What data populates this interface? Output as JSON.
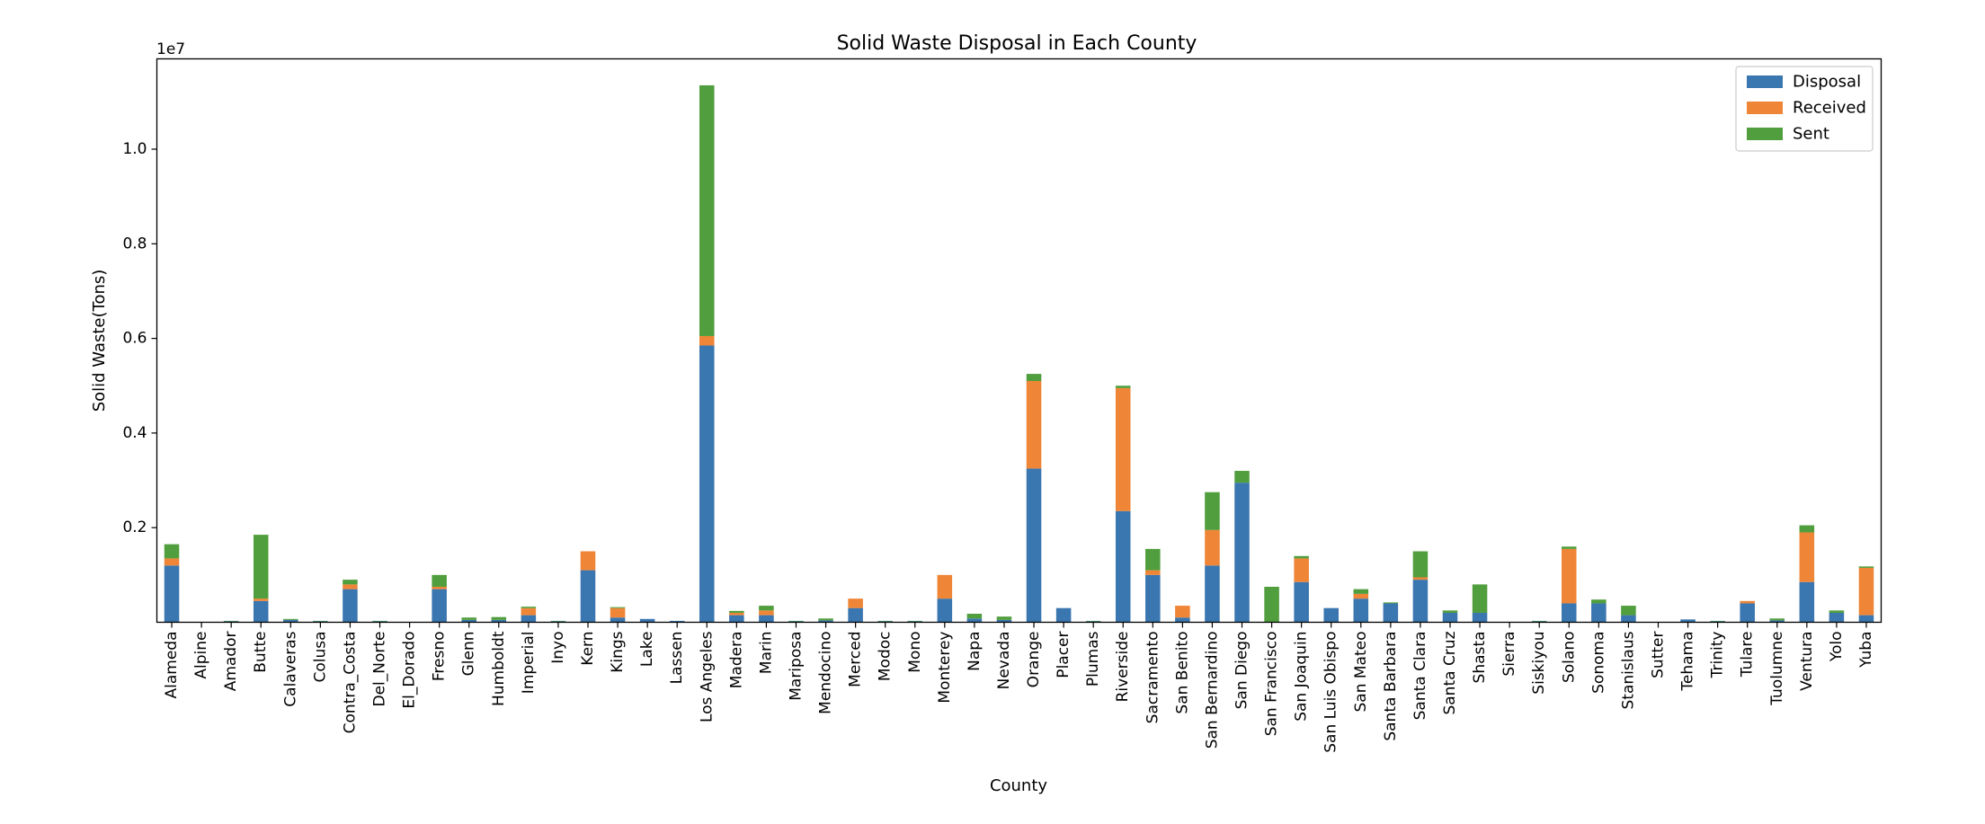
{
  "chart_data": {
    "type": "bar",
    "stacked": true,
    "title": "Solid Waste Disposal in Each County",
    "xlabel": "County",
    "ylabel": "Solid Waste(Tons)",
    "offset_label": "1e7",
    "ylim": [
      0,
      11500000
    ],
    "yticks": [
      2000000,
      4000000,
      6000000,
      8000000,
      10000000
    ],
    "ytick_labels": [
      "0.2",
      "0.4",
      "0.6",
      "0.8",
      "1.0"
    ],
    "grid": false,
    "legend_position": "top-right",
    "categories": [
      "Alameda",
      "Alpine",
      "Amador",
      "Butte",
      "Calaveras",
      "Colusa",
      "Contra_Costa",
      "Del_Norte",
      "El_Dorado",
      "Fresno",
      "Glenn",
      "Humboldt",
      "Imperial",
      "Inyo",
      "Kern",
      "Kings",
      "Lake",
      "Lassen",
      "Los Angeles",
      "Madera",
      "Marin",
      "Mariposa",
      "Mendocino",
      "Merced",
      "Modoc",
      "Mono",
      "Monterey",
      "Napa",
      "Nevada",
      "Orange",
      "Placer",
      "Plumas",
      "Riverside",
      "Sacramento",
      "San Benito",
      "San Bernardino",
      "San Diego",
      "San Francisco",
      "San Joaquin",
      "San Luis Obispo",
      "San Mateo",
      "Santa Barbara",
      "Santa Clara",
      "Santa Cruz",
      "Shasta",
      "Sierra",
      "Siskiyou",
      "Solano",
      "Sonoma",
      "Stanislaus",
      "Sutter",
      "Tehama",
      "Trinity",
      "Tulare",
      "Tuolumne",
      "Ventura",
      "Yolo",
      "Yuba"
    ],
    "series": [
      {
        "name": "Disposal",
        "color": "#3a76af",
        "values": [
          1200000,
          0,
          20000,
          450000,
          50000,
          20000,
          700000,
          20000,
          0,
          700000,
          50000,
          50000,
          150000,
          20000,
          1100000,
          100000,
          70000,
          30000,
          5850000,
          150000,
          150000,
          20000,
          40000,
          300000,
          20000,
          20000,
          500000,
          80000,
          50000,
          3250000,
          300000,
          20000,
          2350000,
          1000000,
          100000,
          1200000,
          2950000,
          0,
          850000,
          300000,
          500000,
          400000,
          900000,
          200000,
          200000,
          0,
          20000,
          400000,
          400000,
          150000,
          0,
          60000,
          20000,
          400000,
          40000,
          850000,
          200000,
          150000
        ]
      },
      {
        "name": "Received",
        "color": "#ef8536",
        "values": [
          150000,
          0,
          0,
          50000,
          0,
          0,
          100000,
          0,
          0,
          50000,
          0,
          0,
          150000,
          0,
          400000,
          200000,
          0,
          0,
          200000,
          50000,
          100000,
          0,
          0,
          200000,
          0,
          0,
          500000,
          0,
          0,
          1850000,
          0,
          0,
          2600000,
          100000,
          250000,
          750000,
          0,
          0,
          500000,
          0,
          100000,
          0,
          50000,
          0,
          0,
          0,
          0,
          1150000,
          0,
          0,
          0,
          0,
          0,
          50000,
          0,
          1050000,
          0,
          1000000
        ]
      },
      {
        "name": "Sent",
        "color": "#519e3e",
        "values": [
          300000,
          0,
          10000,
          1350000,
          20000,
          10000,
          100000,
          10000,
          0,
          250000,
          50000,
          60000,
          30000,
          10000,
          0,
          20000,
          0,
          0,
          5300000,
          40000,
          100000,
          10000,
          40000,
          0,
          10000,
          10000,
          0,
          100000,
          70000,
          150000,
          0,
          10000,
          50000,
          450000,
          0,
          800000,
          250000,
          750000,
          50000,
          0,
          100000,
          20000,
          550000,
          50000,
          600000,
          0,
          10000,
          50000,
          80000,
          200000,
          0,
          0,
          10000,
          0,
          40000,
          150000,
          50000,
          30000
        ]
      }
    ]
  }
}
